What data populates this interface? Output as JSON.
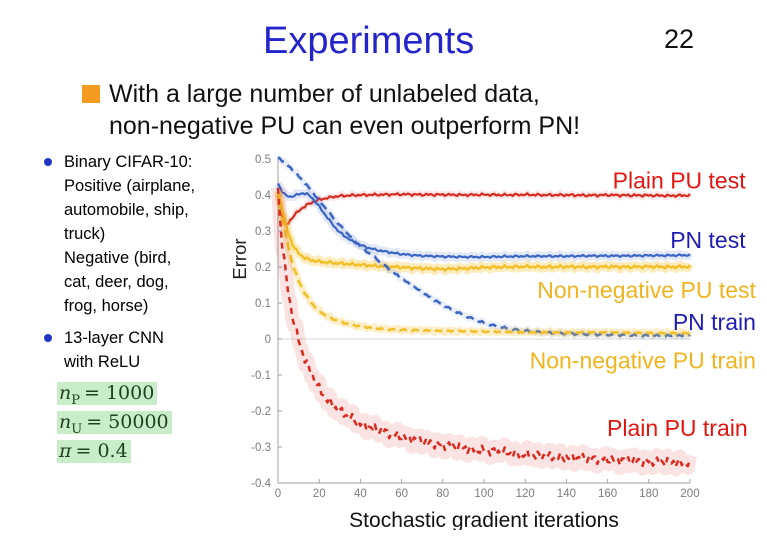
{
  "slide": {
    "page_number": "22",
    "title": "Experiments",
    "bullet": {
      "line1": "With a large number of unlabeled data,",
      "line2": "non-negative PU can even outperform PN!"
    },
    "side_notes": [
      {
        "text": "Binary CIFAR-10:\nPositive (airplane,\nautomobile, ship,\ntruck)\nNegative (bird,\ncat, deer, dog,\nfrog, horse)"
      },
      {
        "text": "13-layer CNN\nwith ReLU"
      }
    ],
    "math": [
      {
        "base": "n",
        "sub": "P",
        "rest": "= 1000"
      },
      {
        "base": "n",
        "sub": "U",
        "rest": "= 50000"
      },
      {
        "base": "π",
        "sub": "",
        "rest": "= 0.4"
      }
    ],
    "colors": {
      "title": "#2424cb",
      "bullet_square": "#f59b20",
      "list_dot": "#2136c4",
      "math_highlight": "#c9ecc9"
    }
  },
  "chart_data": {
    "type": "line",
    "xlabel": "Stochastic gradient iterations",
    "ylabel": "Error",
    "xlim": [
      0,
      200
    ],
    "ylim": [
      -0.4,
      0.5
    ],
    "xticks": [
      0,
      20,
      40,
      60,
      80,
      100,
      120,
      140,
      160,
      180,
      200
    ],
    "yticks": [
      0.5,
      0.4,
      0.3,
      0.2,
      0.1,
      0,
      -0.1,
      -0.2,
      -0.3,
      -0.4
    ],
    "grid": false,
    "zero_line": true,
    "axis_color": "#a0a0a0",
    "tick_label_color": "#7d7d7d",
    "series": [
      {
        "name": "Plain PU test",
        "color": "#d92b20",
        "dash": "",
        "width": 2.2,
        "band": [
          6,
          0.1
        ],
        "jitter": 0.0025,
        "label": {
          "text": "Plain PU test",
          "color": "#e4150f",
          "x": 227,
          "y": 0.44,
          "anchor": "end"
        },
        "points": [
          [
            0,
            0.4
          ],
          [
            1,
            0.37
          ],
          [
            2,
            0.345
          ],
          [
            3,
            0.325
          ],
          [
            4,
            0.315
          ],
          [
            5,
            0.322
          ],
          [
            6,
            0.33
          ],
          [
            8,
            0.345
          ],
          [
            10,
            0.355
          ],
          [
            12,
            0.365
          ],
          [
            14,
            0.372
          ],
          [
            16,
            0.378
          ],
          [
            18,
            0.383
          ],
          [
            20,
            0.387
          ],
          [
            24,
            0.392
          ],
          [
            28,
            0.396
          ],
          [
            32,
            0.398
          ],
          [
            36,
            0.399
          ],
          [
            40,
            0.4
          ],
          [
            50,
            0.401
          ],
          [
            60,
            0.402
          ],
          [
            70,
            0.401
          ],
          [
            80,
            0.401
          ],
          [
            90,
            0.4
          ],
          [
            100,
            0.401
          ],
          [
            110,
            0.4
          ],
          [
            120,
            0.401
          ],
          [
            130,
            0.4
          ],
          [
            140,
            0.4
          ],
          [
            150,
            0.399
          ],
          [
            160,
            0.4
          ],
          [
            170,
            0.399
          ],
          [
            180,
            0.399
          ],
          [
            190,
            0.398
          ],
          [
            200,
            0.399
          ]
        ]
      },
      {
        "name": "PN test",
        "color": "#3b66c4",
        "dash": "",
        "width": 2.2,
        "band": [
          8,
          0.14
        ],
        "jitter": 0.002,
        "label": {
          "text": "PN test",
          "color": "#1d1db5",
          "x": 227,
          "y": 0.275,
          "anchor": "end"
        },
        "points": [
          [
            0,
            0.432
          ],
          [
            2,
            0.41
          ],
          [
            4,
            0.398
          ],
          [
            6,
            0.395
          ],
          [
            8,
            0.398
          ],
          [
            10,
            0.402
          ],
          [
            12,
            0.405
          ],
          [
            14,
            0.403
          ],
          [
            16,
            0.395
          ],
          [
            18,
            0.382
          ],
          [
            20,
            0.368
          ],
          [
            22,
            0.352
          ],
          [
            24,
            0.337
          ],
          [
            26,
            0.322
          ],
          [
            28,
            0.308
          ],
          [
            30,
            0.296
          ],
          [
            33,
            0.283
          ],
          [
            36,
            0.272
          ],
          [
            40,
            0.261
          ],
          [
            44,
            0.253
          ],
          [
            48,
            0.247
          ],
          [
            52,
            0.243
          ],
          [
            56,
            0.239
          ],
          [
            60,
            0.236
          ],
          [
            65,
            0.233
          ],
          [
            70,
            0.231
          ],
          [
            80,
            0.229
          ],
          [
            90,
            0.228
          ],
          [
            100,
            0.228
          ],
          [
            110,
            0.229
          ],
          [
            120,
            0.23
          ],
          [
            130,
            0.23
          ],
          [
            140,
            0.23
          ],
          [
            150,
            0.231
          ],
          [
            160,
            0.231
          ],
          [
            170,
            0.231
          ],
          [
            180,
            0.232
          ],
          [
            190,
            0.232
          ],
          [
            200,
            0.233
          ]
        ]
      },
      {
        "name": "Non-negative PU test",
        "color": "#f2bf27",
        "dash": "",
        "width": 2.4,
        "band": [
          8,
          0.3
        ],
        "jitter": 0.003,
        "label": {
          "text": "Non-negative PU test",
          "color": "#f0b41e",
          "x": 232,
          "y": 0.136,
          "anchor": "end"
        },
        "points": [
          [
            0,
            0.41
          ],
          [
            2,
            0.36
          ],
          [
            4,
            0.315
          ],
          [
            6,
            0.278
          ],
          [
            8,
            0.253
          ],
          [
            10,
            0.238
          ],
          [
            12,
            0.229
          ],
          [
            14,
            0.223
          ],
          [
            16,
            0.219
          ],
          [
            20,
            0.215
          ],
          [
            25,
            0.212
          ],
          [
            30,
            0.21
          ],
          [
            35,
            0.208
          ],
          [
            40,
            0.206
          ],
          [
            50,
            0.202
          ],
          [
            60,
            0.199
          ],
          [
            70,
            0.196
          ],
          [
            80,
            0.194
          ],
          [
            90,
            0.196
          ],
          [
            100,
            0.199
          ],
          [
            110,
            0.2
          ],
          [
            120,
            0.201
          ],
          [
            130,
            0.2
          ],
          [
            140,
            0.201
          ],
          [
            150,
            0.2
          ],
          [
            160,
            0.201
          ],
          [
            170,
            0.2
          ],
          [
            180,
            0.201
          ],
          [
            190,
            0.2
          ],
          [
            200,
            0.201
          ]
        ]
      },
      {
        "name": "PN train",
        "color": "#3b66c4",
        "dash": "8 5",
        "width": 2.5,
        "band": [
          6,
          0.1
        ],
        "jitter": 0.002,
        "label": {
          "text": "PN train",
          "color": "#1d1db5",
          "x": 232,
          "y": 0.047,
          "anchor": "end"
        },
        "points": [
          [
            0,
            0.505
          ],
          [
            4,
            0.487
          ],
          [
            8,
            0.465
          ],
          [
            12,
            0.44
          ],
          [
            16,
            0.413
          ],
          [
            20,
            0.385
          ],
          [
            24,
            0.357
          ],
          [
            28,
            0.329
          ],
          [
            32,
            0.303
          ],
          [
            36,
            0.28
          ],
          [
            40,
            0.258
          ],
          [
            44,
            0.239
          ],
          [
            48,
            0.222
          ],
          [
            52,
            0.203
          ],
          [
            56,
            0.185
          ],
          [
            60,
            0.168
          ],
          [
            64,
            0.152
          ],
          [
            68,
            0.137
          ],
          [
            72,
            0.122
          ],
          [
            76,
            0.108
          ],
          [
            80,
            0.095
          ],
          [
            84,
            0.083
          ],
          [
            88,
            0.072
          ],
          [
            92,
            0.062
          ],
          [
            96,
            0.053
          ],
          [
            100,
            0.045
          ],
          [
            105,
            0.037
          ],
          [
            110,
            0.031
          ],
          [
            115,
            0.026
          ],
          [
            120,
            0.023
          ],
          [
            125,
            0.02
          ],
          [
            130,
            0.018
          ],
          [
            135,
            0.016
          ],
          [
            140,
            0.015
          ],
          [
            150,
            0.013
          ],
          [
            160,
            0.012
          ],
          [
            170,
            0.011
          ],
          [
            180,
            0.01
          ],
          [
            190,
            0.009
          ],
          [
            200,
            0.009
          ]
        ]
      },
      {
        "name": "Non-negative PU train",
        "color": "#f2bf27",
        "dash": "8 5",
        "width": 2.5,
        "band": [
          7,
          0.25
        ],
        "jitter": 0.002,
        "label": {
          "text": "Non-negative PU train",
          "color": "#f0b41e",
          "x": 232,
          "y": -0.06,
          "anchor": "end"
        },
        "points": [
          [
            0,
            0.41
          ],
          [
            2,
            0.34
          ],
          [
            4,
            0.28
          ],
          [
            6,
            0.232
          ],
          [
            8,
            0.193
          ],
          [
            10,
            0.162
          ],
          [
            12,
            0.138
          ],
          [
            14,
            0.118
          ],
          [
            16,
            0.102
          ],
          [
            18,
            0.089
          ],
          [
            20,
            0.078
          ],
          [
            23,
            0.066
          ],
          [
            26,
            0.057
          ],
          [
            30,
            0.048
          ],
          [
            34,
            0.042
          ],
          [
            38,
            0.037
          ],
          [
            42,
            0.034
          ],
          [
            46,
            0.031
          ],
          [
            50,
            0.029
          ],
          [
            55,
            0.027
          ],
          [
            60,
            0.026
          ],
          [
            70,
            0.024
          ],
          [
            80,
            0.022
          ],
          [
            90,
            0.021
          ],
          [
            100,
            0.02
          ],
          [
            110,
            0.02
          ],
          [
            120,
            0.019
          ],
          [
            130,
            0.019
          ],
          [
            140,
            0.018
          ],
          [
            150,
            0.018
          ],
          [
            160,
            0.018
          ],
          [
            170,
            0.017
          ],
          [
            180,
            0.017
          ],
          [
            190,
            0.017
          ],
          [
            200,
            0.017
          ]
        ]
      },
      {
        "name": "Plain PU train",
        "color": "#d92b20",
        "dash": "6 5",
        "width": 2.5,
        "band": [
          14,
          0.12
        ],
        "jitter": 0.009,
        "label": {
          "text": "Plain PU train",
          "color": "#e4150f",
          "x": 228,
          "y": -0.247,
          "anchor": "end"
        },
        "points": [
          [
            0,
            0.42
          ],
          [
            1,
            0.33
          ],
          [
            2,
            0.27
          ],
          [
            3,
            0.22
          ],
          [
            4,
            0.17
          ],
          [
            5,
            0.13
          ],
          [
            6,
            0.095
          ],
          [
            7,
            0.065
          ],
          [
            8,
            0.04
          ],
          [
            9,
            0.018
          ],
          [
            10,
            -0.002
          ],
          [
            12,
            -0.04
          ],
          [
            14,
            -0.07
          ],
          [
            16,
            -0.095
          ],
          [
            18,
            -0.118
          ],
          [
            20,
            -0.138
          ],
          [
            22,
            -0.155
          ],
          [
            24,
            -0.168
          ],
          [
            26,
            -0.18
          ],
          [
            28,
            -0.192
          ],
          [
            30,
            -0.2
          ],
          [
            32,
            -0.206
          ],
          [
            34,
            -0.215
          ],
          [
            36,
            -0.222
          ],
          [
            38,
            -0.228
          ],
          [
            40,
            -0.235
          ],
          [
            43,
            -0.242
          ],
          [
            46,
            -0.248
          ],
          [
            49,
            -0.255
          ],
          [
            52,
            -0.258
          ],
          [
            55,
            -0.264
          ],
          [
            58,
            -0.268
          ],
          [
            61,
            -0.272
          ],
          [
            64,
            -0.276
          ],
          [
            67,
            -0.28
          ],
          [
            70,
            -0.284
          ],
          [
            73,
            -0.287
          ],
          [
            76,
            -0.291
          ],
          [
            79,
            -0.294
          ],
          [
            82,
            -0.296
          ],
          [
            85,
            -0.299
          ],
          [
            88,
            -0.301
          ],
          [
            91,
            -0.303
          ],
          [
            94,
            -0.306
          ],
          [
            97,
            -0.308
          ],
          [
            100,
            -0.31
          ],
          [
            104,
            -0.312
          ],
          [
            108,
            -0.314
          ],
          [
            112,
            -0.317
          ],
          [
            116,
            -0.319
          ],
          [
            120,
            -0.322
          ],
          [
            124,
            -0.324
          ],
          [
            128,
            -0.325
          ],
          [
            132,
            -0.327
          ],
          [
            136,
            -0.328
          ],
          [
            140,
            -0.329
          ],
          [
            145,
            -0.33
          ],
          [
            150,
            -0.332
          ],
          [
            155,
            -0.333
          ],
          [
            160,
            -0.334
          ],
          [
            165,
            -0.336
          ],
          [
            170,
            -0.337
          ],
          [
            175,
            -0.338
          ],
          [
            180,
            -0.34
          ],
          [
            185,
            -0.341
          ],
          [
            190,
            -0.342
          ],
          [
            195,
            -0.344
          ],
          [
            200,
            -0.345
          ]
        ]
      }
    ]
  }
}
